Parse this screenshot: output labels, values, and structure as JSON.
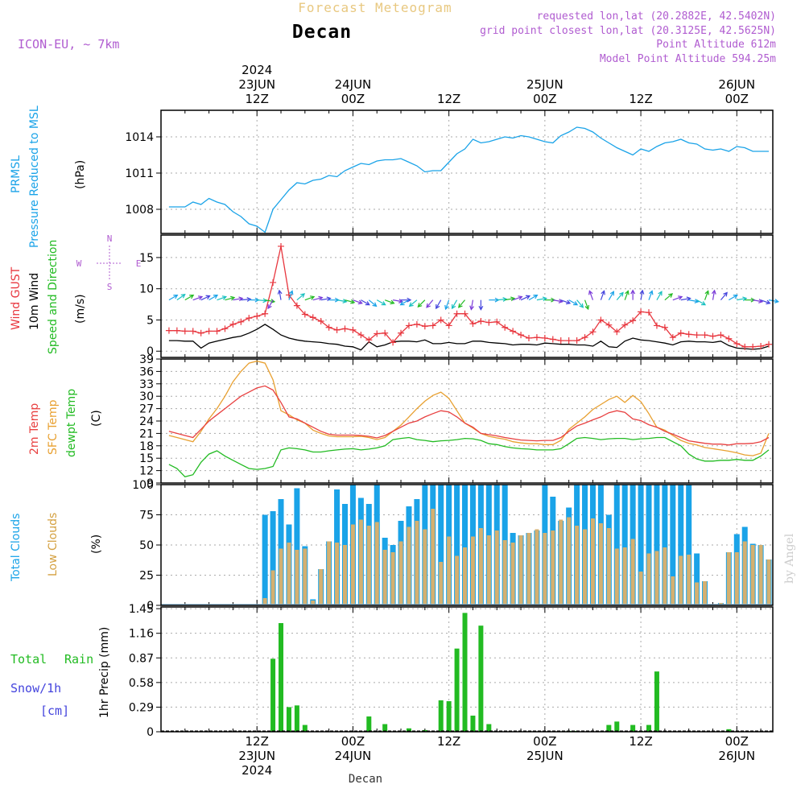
{
  "header": {
    "top_title": "Forecast Meteogram",
    "location": "Decan",
    "model": "ICON-EU, ~ 7km",
    "requested": "requested lon,lat (20.2882E, 42.5402N)",
    "grid_point": "grid point closest lon,lat (20.3125E, 42.5625N)",
    "point_altitude": "Point Altitude 612m",
    "model_altitude": "Model Point Altitude 594.25m",
    "credit": "by Angel",
    "bottom_location": "Decan"
  },
  "colors": {
    "pressure": "#1aa3e8",
    "gust": "#e8363e",
    "wind": "#000000",
    "wind_dir_label": "#22bb22",
    "temp": "#e84040",
    "sfc_temp": "#e8a030",
    "dewpt": "#22bb22",
    "total_clouds": "#1aa3e8",
    "low_clouds": "#d4b070",
    "rain": "#22bb22",
    "snow": "#4444dd",
    "compass": "#b05cd0",
    "header_purple": "#b05cd0",
    "header_tan": "#e8c880"
  },
  "time_axis": {
    "top": [
      {
        "h": 12,
        "lines": [
          "2024",
          "23JUN",
          "12Z"
        ]
      },
      {
        "h": 24,
        "lines": [
          "24JUN",
          "00Z"
        ]
      },
      {
        "h": 36,
        "lines": [
          "12Z"
        ]
      },
      {
        "h": 48,
        "lines": [
          "25JUN",
          "00Z"
        ]
      },
      {
        "h": 60,
        "lines": [
          "12Z"
        ]
      },
      {
        "h": 72,
        "lines": [
          "26JUN",
          "00Z"
        ]
      }
    ],
    "bottom": [
      {
        "h": 12,
        "lines": [
          "12Z",
          "23JUN",
          "2024"
        ]
      },
      {
        "h": 24,
        "lines": [
          "00Z",
          "24JUN"
        ]
      },
      {
        "h": 36,
        "lines": [
          "12Z"
        ]
      },
      {
        "h": 48,
        "lines": [
          "00Z",
          "25JUN"
        ]
      },
      {
        "h": 60,
        "lines": [
          "12Z"
        ]
      },
      {
        "h": 72,
        "lines": [
          "00Z",
          "26JUN"
        ]
      }
    ]
  },
  "compass": {
    "n": "N",
    "s": "S",
    "e": "E",
    "w": "W"
  },
  "panels": {
    "pressure": {
      "label1": "PRMSL",
      "label2": "Pressure Reduced to MSL",
      "unit": "(hPa)"
    },
    "wind": {
      "label1": "Wind GUST",
      "label2": "10m Wind",
      "label3": "Speed and Direction",
      "unit": "(m/s)"
    },
    "temp": {
      "label1": "2m Temp",
      "label2": "SFC Temp",
      "label3": "dewpt Temp",
      "unit": "(C)"
    },
    "clouds": {
      "label1": "Total Clouds",
      "label2": "Low Clouds",
      "unit": "(%)"
    },
    "precip": {
      "label1": "Total",
      "label1b": "Rain",
      "label2": "Snow/1h",
      "label3": "[cm]",
      "unit": "1hr Precip (mm)"
    }
  },
  "chart_data": [
    {
      "type": "line",
      "name": "pressure",
      "ylim": [
        1006,
        1016.2
      ],
      "yticks": [
        1008,
        1011,
        1014
      ],
      "x_hours": [
        1,
        2,
        3,
        4,
        5,
        6,
        7,
        8,
        9,
        10,
        11,
        12,
        13,
        14,
        15,
        16,
        17,
        18,
        19,
        20,
        21,
        22,
        23,
        24,
        25,
        26,
        27,
        28,
        29,
        30,
        31,
        32,
        33,
        34,
        35,
        36,
        37,
        38,
        39,
        40,
        41,
        42,
        43,
        44,
        45,
        46,
        47,
        48,
        49,
        50,
        51,
        52,
        53,
        54,
        55,
        56,
        57,
        58,
        59,
        60,
        61,
        62,
        63,
        64,
        65,
        66,
        67,
        68,
        69,
        70,
        71,
        72,
        73,
        74,
        75,
        76
      ],
      "values": [
        1008.2,
        1008.2,
        1008.2,
        1008.6,
        1008.4,
        1008.9,
        1008.6,
        1008.4,
        1007.8,
        1007.4,
        1006.8,
        1006.6,
        1006.1,
        1008.0,
        1008.8,
        1009.6,
        1010.2,
        1010.1,
        1010.4,
        1010.5,
        1010.8,
        1010.7,
        1011.2,
        1011.5,
        1011.8,
        1011.7,
        1012.0,
        1012.1,
        1012.1,
        1012.2,
        1011.9,
        1011.6,
        1011.1,
        1011.2,
        1011.2,
        1011.9,
        1012.6,
        1013.0,
        1013.8,
        1013.5,
        1013.6,
        1013.8,
        1014.0,
        1013.9,
        1014.1,
        1014.0,
        1013.8,
        1013.6,
        1013.5,
        1014.1,
        1014.4,
        1014.8,
        1014.7,
        1014.4,
        1013.9,
        1013.5,
        1013.1,
        1012.8,
        1012.5,
        1013.0,
        1012.8,
        1013.2,
        1013.5,
        1013.6,
        1013.8,
        1013.5,
        1013.4,
        1013.0,
        1012.9,
        1013.0,
        1012.8,
        1013.2,
        1013.1,
        1012.8,
        1012.8,
        1012.8
      ]
    },
    {
      "type": "line",
      "name": "wind",
      "ylim": [
        -1,
        18.6
      ],
      "yticks": [
        0,
        5,
        10,
        15
      ],
      "x_hours": [
        1,
        2,
        3,
        4,
        5,
        6,
        7,
        8,
        9,
        10,
        11,
        12,
        13,
        14,
        15,
        16,
        17,
        18,
        19,
        20,
        21,
        22,
        23,
        24,
        25,
        26,
        27,
        28,
        29,
        30,
        31,
        32,
        33,
        34,
        35,
        36,
        37,
        38,
        39,
        40,
        41,
        42,
        43,
        44,
        45,
        46,
        47,
        48,
        49,
        50,
        51,
        52,
        53,
        54,
        55,
        56,
        57,
        58,
        59,
        60,
        61,
        62,
        63,
        64,
        65,
        66,
        67,
        68,
        69,
        70,
        71,
        72,
        73,
        74,
        75,
        76
      ],
      "gust": [
        3.3,
        3.3,
        3.2,
        3.2,
        2.9,
        3.2,
        3.2,
        3.6,
        4.3,
        4.7,
        5.3,
        5.6,
        6.0,
        11.0,
        16.8,
        9.0,
        7.3,
        5.9,
        5.4,
        4.8,
        3.8,
        3.4,
        3.6,
        3.4,
        2.6,
        1.8,
        2.8,
        2.9,
        1.4,
        2.9,
        4.1,
        4.3,
        4.0,
        4.1,
        5.0,
        4.1,
        6.0,
        6.0,
        4.4,
        4.8,
        4.6,
        4.7,
        3.8,
        3.2,
        2.6,
        2.1,
        2.2,
        2.1,
        1.9,
        1.7,
        1.7,
        1.7,
        2.2,
        3.1,
        5.0,
        4.2,
        3.1,
        4.2,
        4.9,
        6.3,
        6.2,
        4.1,
        3.8,
        2.2,
        2.9,
        2.7,
        2.6,
        2.6,
        2.4,
        2.6,
        2.0,
        1.2,
        0.7,
        0.7,
        0.8,
        1.1
      ],
      "speed": [
        1.7,
        1.7,
        1.6,
        1.6,
        0.5,
        1.3,
        1.6,
        1.9,
        2.2,
        2.4,
        2.9,
        3.5,
        4.3,
        3.5,
        2.6,
        2.1,
        1.8,
        1.6,
        1.5,
        1.4,
        1.2,
        1.1,
        0.8,
        0.7,
        0.2,
        1.5,
        0.7,
        1.0,
        1.5,
        1.6,
        1.6,
        1.5,
        1.8,
        1.2,
        1.2,
        1.4,
        1.2,
        1.2,
        1.6,
        1.6,
        1.4,
        1.3,
        1.2,
        1.0,
        1.1,
        1.1,
        1.0,
        1.3,
        1.2,
        1.1,
        1.1,
        1.0,
        1.0,
        0.8,
        1.6,
        0.7,
        0.6,
        1.6,
        2.1,
        1.8,
        1.7,
        1.5,
        1.3,
        1.0,
        1.5,
        1.6,
        1.5,
        1.5,
        1.4,
        1.6,
        0.9,
        0.5,
        0.4,
        0.3,
        0.4,
        0.8
      ],
      "dir_deg": [
        240,
        235,
        240,
        250,
        245,
        240,
        250,
        255,
        260,
        265,
        270,
        275,
        280,
        30,
        170,
        200,
        230,
        250,
        255,
        260,
        270,
        280,
        285,
        290,
        300,
        310,
        300,
        290,
        280,
        270,
        60,
        50,
        45,
        40,
        30,
        20,
        30,
        40,
        10,
        0,
        270,
        265,
        260,
        250,
        245,
        240,
        260,
        270,
        280,
        290,
        300,
        320,
        340,
        160,
        200,
        210,
        220,
        200,
        180,
        190,
        200,
        210,
        230,
        250,
        260,
        280,
        300,
        200,
        190,
        220,
        240,
        260,
        270,
        280,
        290,
        280
      ]
    },
    {
      "type": "line",
      "name": "temperature",
      "ylim": [
        9,
        39
      ],
      "yticks": [
        9,
        12,
        15,
        18,
        21,
        24,
        27,
        30,
        33,
        36,
        39
      ],
      "x_hours": [
        1,
        2,
        3,
        4,
        5,
        6,
        7,
        8,
        9,
        10,
        11,
        12,
        13,
        14,
        15,
        16,
        17,
        18,
        19,
        20,
        21,
        22,
        23,
        24,
        25,
        26,
        27,
        28,
        29,
        30,
        31,
        32,
        33,
        34,
        35,
        36,
        37,
        38,
        39,
        40,
        41,
        42,
        43,
        44,
        45,
        46,
        47,
        48,
        49,
        50,
        51,
        52,
        53,
        54,
        55,
        56,
        57,
        58,
        59,
        60,
        61,
        62,
        63,
        64,
        65,
        66,
        67,
        68,
        69,
        70,
        71,
        72,
        73,
        74,
        75,
        76
      ],
      "t2m": [
        21.5,
        21.0,
        20.5,
        20.0,
        22.0,
        24.0,
        25.5,
        27.0,
        28.5,
        30.0,
        31.0,
        32.0,
        32.5,
        31.5,
        28.5,
        25.0,
        24.5,
        23.5,
        22.5,
        21.5,
        20.8,
        20.6,
        20.6,
        20.6,
        20.5,
        20.3,
        19.9,
        20.5,
        21.5,
        22.5,
        23.5,
        24.0,
        25.0,
        25.8,
        26.5,
        26.2,
        25.0,
        23.5,
        22.5,
        21.0,
        20.7,
        20.4,
        20.0,
        19.7,
        19.4,
        19.3,
        19.2,
        19.3,
        19.3,
        20.0,
        21.5,
        22.8,
        23.5,
        24.3,
        25.0,
        26.0,
        26.5,
        26.1,
        24.5,
        24.1,
        23.1,
        22.5,
        21.5,
        20.8,
        20.0,
        19.2,
        18.9,
        18.6,
        18.4,
        18.4,
        18.2,
        18.5,
        18.5,
        18.6,
        19.0,
        20.0
      ],
      "sfc": [
        20.5,
        20.0,
        19.5,
        19.0,
        21.5,
        24.5,
        27.0,
        30.0,
        33.5,
        36.0,
        38.0,
        38.5,
        38.0,
        34.0,
        26.5,
        25.5,
        24.3,
        23.5,
        21.8,
        21.0,
        20.4,
        20.2,
        20.2,
        20.2,
        20.3,
        20.0,
        19.5,
        20.0,
        21.5,
        23.0,
        25.0,
        27.0,
        28.8,
        30.2,
        31.0,
        29.5,
        26.5,
        23.5,
        22.3,
        21.0,
        20.3,
        19.9,
        19.6,
        19.0,
        18.7,
        18.5,
        18.5,
        18.3,
        18.3,
        19.3,
        22.0,
        23.5,
        25.0,
        26.8,
        28.0,
        29.2,
        30.0,
        28.5,
        30.2,
        28.7,
        25.8,
        22.5,
        21.8,
        20.5,
        19.3,
        18.6,
        18.2,
        17.6,
        17.3,
        17.0,
        16.7,
        16.3,
        15.8,
        15.6,
        16.2,
        21.0
      ],
      "dewpt": [
        13.5,
        12.5,
        10.5,
        11.0,
        14.0,
        16.0,
        16.8,
        15.5,
        14.5,
        13.5,
        12.5,
        12.3,
        12.5,
        13.0,
        17.0,
        17.5,
        17.3,
        17.0,
        16.5,
        16.5,
        16.8,
        17.0,
        17.2,
        17.3,
        17.0,
        17.2,
        17.5,
        18.0,
        19.5,
        19.8,
        20.0,
        19.5,
        19.3,
        19.0,
        19.2,
        19.3,
        19.5,
        19.8,
        19.7,
        19.3,
        18.5,
        18.3,
        17.8,
        17.5,
        17.3,
        17.2,
        17.0,
        17.0,
        17.0,
        17.3,
        18.5,
        19.8,
        20.0,
        19.8,
        19.5,
        19.7,
        19.8,
        19.8,
        19.5,
        19.7,
        19.8,
        20.0,
        20.0,
        19.0,
        18.0,
        16.0,
        14.8,
        14.3,
        14.3,
        14.5,
        14.5,
        14.7,
        14.5,
        14.5,
        15.5,
        17.0
      ]
    },
    {
      "type": "bar",
      "name": "clouds",
      "ylim": [
        0,
        100
      ],
      "yticks": [
        0,
        25,
        50,
        75,
        100
      ],
      "x_hours": [
        1,
        2,
        3,
        4,
        5,
        6,
        7,
        8,
        9,
        10,
        11,
        12,
        13,
        14,
        15,
        16,
        17,
        18,
        19,
        20,
        21,
        22,
        23,
        24,
        25,
        26,
        27,
        28,
        29,
        30,
        31,
        32,
        33,
        34,
        35,
        36,
        37,
        38,
        39,
        40,
        41,
        42,
        43,
        44,
        45,
        46,
        47,
        48,
        49,
        50,
        51,
        52,
        53,
        54,
        55,
        56,
        57,
        58,
        59,
        60,
        61,
        62,
        63,
        64,
        65,
        66,
        67,
        68,
        69,
        70,
        71,
        72,
        73,
        74,
        75,
        76
      ],
      "total": [
        0,
        0,
        0,
        0,
        0,
        0,
        0,
        0,
        0,
        0,
        0,
        0,
        75,
        78,
        88,
        67,
        97,
        49,
        5,
        30,
        53,
        96,
        84,
        100,
        89,
        84,
        100,
        56,
        50,
        70,
        82,
        88,
        100,
        100,
        100,
        100,
        100,
        100,
        100,
        100,
        100,
        100,
        100,
        60,
        58,
        60,
        62,
        100,
        90,
        70,
        81,
        100,
        100,
        100,
        100,
        75,
        100,
        100,
        100,
        100,
        100,
        100,
        100,
        100,
        100,
        100,
        43,
        20,
        1,
        2,
        44,
        59,
        65,
        51,
        50,
        38
      ],
      "low": [
        0,
        0,
        0,
        0,
        0,
        0,
        0,
        0,
        0,
        0,
        0,
        0,
        6,
        29,
        47,
        52,
        46,
        47,
        4,
        30,
        53,
        52,
        50,
        67,
        71,
        66,
        69,
        46,
        44,
        53,
        65,
        70,
        63,
        80,
        36,
        57,
        41,
        48,
        57,
        64,
        58,
        62,
        54,
        52,
        58,
        60,
        63,
        60,
        62,
        71,
        73,
        66,
        63,
        72,
        68,
        64,
        47,
        48,
        55,
        28,
        43,
        45,
        48,
        24,
        41,
        42,
        19,
        20,
        1,
        2,
        44,
        44,
        53,
        50,
        50,
        38
      ]
    },
    {
      "type": "bar",
      "name": "precip",
      "ylim": [
        0,
        1.47
      ],
      "yticks": [
        0,
        0.29,
        0.58,
        0.87,
        1.16,
        1.45
      ],
      "x_hours": [
        1,
        2,
        3,
        4,
        5,
        6,
        7,
        8,
        9,
        10,
        11,
        12,
        13,
        14,
        15,
        16,
        17,
        18,
        19,
        20,
        21,
        22,
        23,
        24,
        25,
        26,
        27,
        28,
        29,
        30,
        31,
        32,
        33,
        34,
        35,
        36,
        37,
        38,
        39,
        40,
        41,
        42,
        43,
        44,
        45,
        46,
        47,
        48,
        49,
        50,
        51,
        52,
        53,
        54,
        55,
        56,
        57,
        58,
        59,
        60,
        61,
        62,
        63,
        64,
        65,
        66,
        67,
        68,
        69,
        70,
        71,
        72,
        73,
        74,
        75,
        76
      ],
      "rain": [
        0,
        0,
        0,
        0,
        0,
        0,
        0,
        0,
        0,
        0,
        0,
        0,
        0,
        0.86,
        1.28,
        0.29,
        0.31,
        0.08,
        0,
        0,
        0,
        0,
        0,
        0,
        0,
        0.18,
        0,
        0.09,
        0,
        0,
        0.04,
        0,
        0.02,
        0,
        0.37,
        0.36,
        0.98,
        1.4,
        0.19,
        1.25,
        0.09,
        0,
        0,
        0,
        0,
        0,
        0,
        0,
        0,
        0,
        0.01,
        0.01,
        0,
        0,
        0,
        0.08,
        0.12,
        0,
        0.08,
        0.01,
        0.08,
        0.71,
        0,
        0,
        0,
        0,
        0,
        0,
        0,
        0,
        0.03,
        0,
        0,
        0,
        0,
        0
      ]
    }
  ]
}
